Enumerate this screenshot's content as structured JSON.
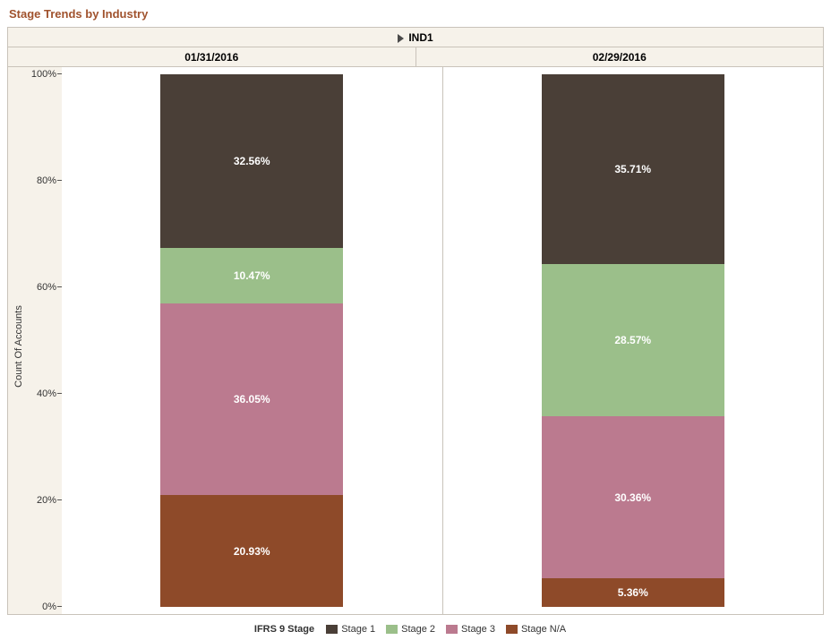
{
  "title": "Stage Trends by Industry",
  "title_color": "#a0522d",
  "group_label": "IND1",
  "panel_labels": [
    "01/31/2016",
    "02/29/2016"
  ],
  "y_axis_label": "Count Of Accounts",
  "y_ticks": [
    0,
    20,
    40,
    60,
    80,
    100
  ],
  "y_tick_suffix": "%",
  "legend_title": "IFRS 9 Stage",
  "series": [
    {
      "name": "Stage 1",
      "color": "#4a3f37"
    },
    {
      "name": "Stage 2",
      "color": "#9bbf8a"
    },
    {
      "name": "Stage 3",
      "color": "#bb7a8f"
    },
    {
      "name": "Stage N/A",
      "color": "#8e4a29"
    }
  ],
  "bars": [
    {
      "segments": [
        {
          "value": 32.56,
          "label": "32.56%",
          "color": "#4a3f37"
        },
        {
          "value": 10.47,
          "label": "10.47%",
          "color": "#9bbf8a"
        },
        {
          "value": 36.05,
          "label": "36.05%",
          "color": "#bb7a8f"
        },
        {
          "value": 20.93,
          "label": "20.93%",
          "color": "#8e4a29"
        }
      ]
    },
    {
      "segments": [
        {
          "value": 35.71,
          "label": "35.71%",
          "color": "#4a3f37"
        },
        {
          "value": 28.57,
          "label": "28.57%",
          "color": "#9bbf8a"
        },
        {
          "value": 30.36,
          "label": "30.36%",
          "color": "#bb7a8f"
        },
        {
          "value": 5.36,
          "label": "5.36%",
          "color": "#8e4a29"
        }
      ]
    }
  ],
  "background_color": "#f6f2ea",
  "panel_background": "#ffffff",
  "border_color": "#c9c3ba",
  "label_text_color": "#ffffff"
}
